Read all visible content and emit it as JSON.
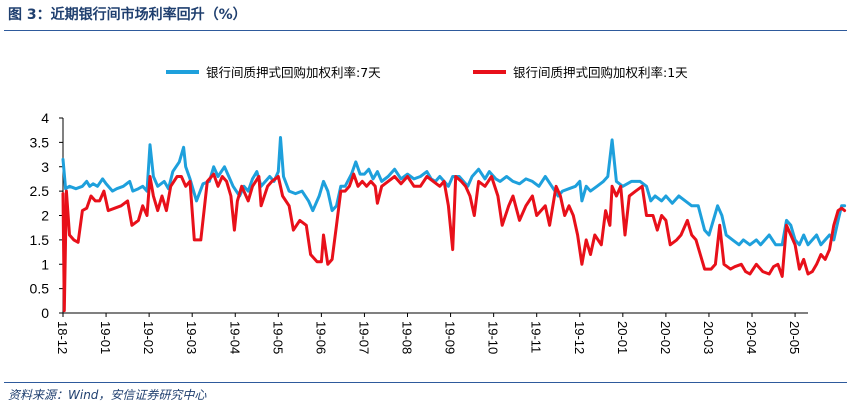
{
  "figure": {
    "title": "图 3：近期银行间市场利率回升（%）",
    "source": "资料来源：Wind，安信证券研究中心"
  },
  "colors": {
    "dr007": "#1ea0dc",
    "dr001": "#e8101a",
    "rule": "#2e5a9c"
  },
  "chart_data": {
    "type": "line",
    "title": "",
    "xlabel": "",
    "ylabel": "",
    "ylim": [
      0,
      4
    ],
    "yticks": [
      "0",
      "0.5",
      "1",
      "1.5",
      "2",
      "2.5",
      "3",
      "3.5",
      "4"
    ],
    "xticks": [
      "18-12",
      "19-01",
      "19-02",
      "19-03",
      "19-04",
      "19-05",
      "19-06",
      "19-07",
      "19-08",
      "19-09",
      "19-10",
      "19-11",
      "19-12",
      "20-01",
      "20-02",
      "20-03",
      "20-04",
      "20-05"
    ],
    "grid": false,
    "legend": "top",
    "series": [
      {
        "name": "银行间质押式回购加权利率:7天",
        "color": "#1ea0dc",
        "points": [
          [
            0.0,
            3.15
          ],
          [
            0.06,
            2.55
          ],
          [
            0.15,
            2.6
          ],
          [
            0.3,
            2.55
          ],
          [
            0.45,
            2.6
          ],
          [
            0.55,
            2.7
          ],
          [
            0.62,
            2.6
          ],
          [
            0.7,
            2.65
          ],
          [
            0.8,
            2.6
          ],
          [
            0.92,
            2.75
          ],
          [
            1.0,
            2.65
          ],
          [
            1.15,
            2.5
          ],
          [
            1.25,
            2.55
          ],
          [
            1.4,
            2.6
          ],
          [
            1.55,
            2.7
          ],
          [
            1.62,
            2.5
          ],
          [
            1.75,
            2.55
          ],
          [
            1.85,
            2.6
          ],
          [
            1.95,
            2.5
          ],
          [
            2.02,
            3.45
          ],
          [
            2.1,
            2.8
          ],
          [
            2.2,
            2.6
          ],
          [
            2.35,
            2.7
          ],
          [
            2.45,
            2.55
          ],
          [
            2.55,
            2.9
          ],
          [
            2.7,
            3.1
          ],
          [
            2.8,
            3.4
          ],
          [
            2.85,
            3.0
          ],
          [
            2.95,
            2.75
          ],
          [
            3.1,
            2.3
          ],
          [
            3.25,
            2.65
          ],
          [
            3.4,
            2.7
          ],
          [
            3.5,
            3.0
          ],
          [
            3.6,
            2.8
          ],
          [
            3.75,
            3.0
          ],
          [
            3.85,
            2.8
          ],
          [
            3.95,
            2.6
          ],
          [
            4.1,
            2.4
          ],
          [
            4.2,
            2.6
          ],
          [
            4.3,
            2.5
          ],
          [
            4.4,
            2.75
          ],
          [
            4.5,
            2.9
          ],
          [
            4.6,
            2.6
          ],
          [
            4.7,
            2.7
          ],
          [
            4.8,
            2.8
          ],
          [
            4.9,
            2.7
          ],
          [
            5.0,
            2.9
          ],
          [
            5.05,
            3.6
          ],
          [
            5.12,
            2.8
          ],
          [
            5.25,
            2.5
          ],
          [
            5.4,
            2.45
          ],
          [
            5.55,
            2.5
          ],
          [
            5.7,
            2.3
          ],
          [
            5.8,
            2.1
          ],
          [
            5.95,
            2.4
          ],
          [
            6.05,
            2.7
          ],
          [
            6.15,
            2.5
          ],
          [
            6.25,
            2.1
          ],
          [
            6.35,
            2.2
          ],
          [
            6.45,
            2.6
          ],
          [
            6.55,
            2.6
          ],
          [
            6.7,
            2.85
          ],
          [
            6.8,
            3.1
          ],
          [
            6.9,
            2.85
          ],
          [
            7.0,
            2.85
          ],
          [
            7.1,
            2.95
          ],
          [
            7.2,
            2.75
          ],
          [
            7.3,
            2.9
          ],
          [
            7.4,
            2.7
          ],
          [
            7.55,
            2.8
          ],
          [
            7.7,
            2.95
          ],
          [
            7.85,
            2.75
          ],
          [
            8.0,
            2.85
          ],
          [
            8.15,
            2.75
          ],
          [
            8.3,
            2.8
          ],
          [
            8.45,
            2.9
          ],
          [
            8.55,
            2.75
          ],
          [
            8.65,
            2.7
          ],
          [
            8.75,
            2.8
          ],
          [
            8.85,
            2.7
          ],
          [
            8.95,
            2.6
          ],
          [
            9.05,
            2.8
          ],
          [
            9.2,
            2.8
          ],
          [
            9.3,
            2.7
          ],
          [
            9.4,
            2.6
          ],
          [
            9.5,
            2.8
          ],
          [
            9.65,
            2.95
          ],
          [
            9.8,
            2.75
          ],
          [
            9.9,
            2.9
          ],
          [
            10.05,
            2.75
          ],
          [
            10.15,
            2.7
          ],
          [
            10.3,
            2.8
          ],
          [
            10.45,
            2.7
          ],
          [
            10.6,
            2.65
          ],
          [
            10.75,
            2.75
          ],
          [
            10.9,
            2.7
          ],
          [
            11.05,
            2.6
          ],
          [
            11.2,
            2.8
          ],
          [
            11.35,
            2.6
          ],
          [
            11.5,
            2.4
          ],
          [
            11.6,
            2.5
          ],
          [
            11.75,
            2.55
          ],
          [
            11.9,
            2.6
          ],
          [
            12.0,
            2.7
          ],
          [
            12.05,
            2.3
          ],
          [
            12.15,
            2.6
          ],
          [
            12.25,
            2.5
          ],
          [
            12.4,
            2.6
          ],
          [
            12.55,
            2.7
          ],
          [
            12.65,
            2.8
          ],
          [
            12.75,
            3.55
          ],
          [
            12.85,
            2.7
          ],
          [
            13.0,
            2.6
          ],
          [
            13.2,
            2.7
          ],
          [
            13.4,
            2.7
          ],
          [
            13.55,
            2.6
          ],
          [
            13.65,
            2.3
          ],
          [
            13.75,
            2.4
          ],
          [
            13.9,
            2.3
          ],
          [
            14.0,
            2.4
          ],
          [
            14.15,
            2.25
          ],
          [
            14.3,
            2.4
          ],
          [
            14.45,
            2.3
          ],
          [
            14.6,
            2.2
          ],
          [
            14.75,
            2.2
          ],
          [
            14.9,
            1.7
          ],
          [
            15.0,
            1.6
          ],
          [
            15.1,
            1.9
          ],
          [
            15.2,
            2.2
          ],
          [
            15.3,
            2.0
          ],
          [
            15.4,
            1.6
          ],
          [
            15.55,
            1.5
          ],
          [
            15.7,
            1.4
          ],
          [
            15.8,
            1.5
          ],
          [
            15.95,
            1.4
          ],
          [
            16.1,
            1.5
          ],
          [
            16.2,
            1.4
          ],
          [
            16.3,
            1.5
          ],
          [
            16.4,
            1.6
          ],
          [
            16.55,
            1.4
          ],
          [
            16.7,
            1.4
          ],
          [
            16.8,
            1.9
          ],
          [
            16.9,
            1.8
          ],
          [
            17.0,
            1.5
          ],
          [
            17.1,
            1.4
          ],
          [
            17.2,
            1.6
          ],
          [
            17.3,
            1.4
          ],
          [
            17.4,
            1.5
          ],
          [
            17.5,
            1.6
          ],
          [
            17.6,
            1.4
          ],
          [
            17.7,
            1.5
          ],
          [
            17.8,
            1.6
          ],
          [
            17.9,
            1.5
          ],
          [
            18.0,
            1.9
          ],
          [
            18.08,
            2.2
          ],
          [
            18.15,
            2.2
          ]
        ]
      },
      {
        "name": "银行间质押式回购加权利率:1天",
        "color": "#e8101a",
        "points": [
          [
            0.0,
            2.45
          ],
          [
            0.03,
            0.05
          ],
          [
            0.08,
            2.5
          ],
          [
            0.15,
            1.6
          ],
          [
            0.25,
            1.5
          ],
          [
            0.35,
            1.45
          ],
          [
            0.45,
            2.1
          ],
          [
            0.55,
            2.15
          ],
          [
            0.65,
            2.4
          ],
          [
            0.75,
            2.3
          ],
          [
            0.85,
            2.3
          ],
          [
            0.95,
            2.5
          ],
          [
            1.05,
            2.1
          ],
          [
            1.2,
            2.15
          ],
          [
            1.35,
            2.2
          ],
          [
            1.5,
            2.3
          ],
          [
            1.6,
            1.8
          ],
          [
            1.75,
            1.9
          ],
          [
            1.85,
            2.2
          ],
          [
            1.95,
            2.0
          ],
          [
            2.02,
            2.8
          ],
          [
            2.1,
            2.4
          ],
          [
            2.2,
            2.1
          ],
          [
            2.3,
            2.4
          ],
          [
            2.4,
            2.1
          ],
          [
            2.5,
            2.6
          ],
          [
            2.65,
            2.8
          ],
          [
            2.75,
            2.8
          ],
          [
            2.85,
            2.6
          ],
          [
            2.95,
            2.7
          ],
          [
            3.05,
            1.5
          ],
          [
            3.2,
            1.5
          ],
          [
            3.35,
            2.7
          ],
          [
            3.5,
            2.85
          ],
          [
            3.6,
            2.6
          ],
          [
            3.7,
            2.8
          ],
          [
            3.8,
            2.7
          ],
          [
            3.9,
            2.4
          ],
          [
            3.98,
            1.7
          ],
          [
            4.05,
            2.3
          ],
          [
            4.15,
            2.6
          ],
          [
            4.3,
            2.3
          ],
          [
            4.4,
            2.6
          ],
          [
            4.55,
            2.8
          ],
          [
            4.6,
            2.2
          ],
          [
            4.75,
            2.6
          ],
          [
            4.85,
            2.7
          ],
          [
            5.0,
            2.8
          ],
          [
            5.1,
            2.4
          ],
          [
            5.25,
            2.2
          ],
          [
            5.35,
            1.7
          ],
          [
            5.5,
            1.9
          ],
          [
            5.65,
            1.8
          ],
          [
            5.75,
            1.2
          ],
          [
            5.9,
            1.05
          ],
          [
            6.0,
            1.05
          ],
          [
            6.05,
            1.6
          ],
          [
            6.15,
            1.0
          ],
          [
            6.25,
            1.1
          ],
          [
            6.35,
            1.8
          ],
          [
            6.45,
            2.5
          ],
          [
            6.55,
            2.5
          ],
          [
            6.65,
            2.6
          ],
          [
            6.75,
            2.85
          ],
          [
            6.85,
            2.6
          ],
          [
            6.95,
            2.7
          ],
          [
            7.05,
            2.6
          ],
          [
            7.15,
            2.7
          ],
          [
            7.25,
            2.6
          ],
          [
            7.3,
            2.25
          ],
          [
            7.4,
            2.6
          ],
          [
            7.55,
            2.7
          ],
          [
            7.7,
            2.8
          ],
          [
            7.85,
            2.65
          ],
          [
            8.0,
            2.8
          ],
          [
            8.15,
            2.6
          ],
          [
            8.3,
            2.6
          ],
          [
            8.45,
            2.8
          ],
          [
            8.6,
            2.7
          ],
          [
            8.75,
            2.6
          ],
          [
            8.85,
            2.7
          ],
          [
            8.95,
            2.2
          ],
          [
            9.05,
            1.3
          ],
          [
            9.12,
            2.8
          ],
          [
            9.25,
            2.7
          ],
          [
            9.35,
            2.6
          ],
          [
            9.45,
            2.4
          ],
          [
            9.55,
            2.0
          ],
          [
            9.65,
            2.7
          ],
          [
            9.8,
            2.6
          ],
          [
            9.95,
            2.8
          ],
          [
            10.1,
            2.4
          ],
          [
            10.2,
            1.8
          ],
          [
            10.35,
            2.2
          ],
          [
            10.45,
            2.4
          ],
          [
            10.6,
            1.9
          ],
          [
            10.75,
            2.2
          ],
          [
            10.9,
            2.4
          ],
          [
            11.0,
            2.0
          ],
          [
            11.1,
            2.1
          ],
          [
            11.2,
            2.2
          ],
          [
            11.3,
            1.8
          ],
          [
            11.45,
            2.6
          ],
          [
            11.55,
            2.4
          ],
          [
            11.65,
            2.0
          ],
          [
            11.75,
            2.2
          ],
          [
            11.85,
            2.0
          ],
          [
            11.95,
            1.6
          ],
          [
            12.05,
            1.0
          ],
          [
            12.15,
            1.5
          ],
          [
            12.25,
            1.2
          ],
          [
            12.35,
            1.6
          ],
          [
            12.5,
            1.4
          ],
          [
            12.6,
            2.1
          ],
          [
            12.7,
            1.8
          ],
          [
            12.75,
            2.6
          ],
          [
            12.85,
            2.4
          ],
          [
            12.95,
            2.6
          ],
          [
            13.05,
            1.6
          ],
          [
            13.15,
            2.4
          ],
          [
            13.3,
            2.5
          ],
          [
            13.45,
            2.6
          ],
          [
            13.55,
            2.0
          ],
          [
            13.7,
            2.0
          ],
          [
            13.8,
            1.7
          ],
          [
            13.9,
            2.0
          ],
          [
            14.0,
            1.9
          ],
          [
            14.1,
            1.4
          ],
          [
            14.25,
            1.5
          ],
          [
            14.35,
            1.6
          ],
          [
            14.5,
            1.9
          ],
          [
            14.6,
            1.6
          ],
          [
            14.7,
            1.5
          ],
          [
            14.8,
            1.2
          ],
          [
            14.9,
            0.9
          ],
          [
            15.05,
            0.9
          ],
          [
            15.15,
            1.0
          ],
          [
            15.25,
            1.8
          ],
          [
            15.35,
            1.0
          ],
          [
            15.5,
            0.9
          ],
          [
            15.6,
            0.95
          ],
          [
            15.75,
            1.0
          ],
          [
            15.85,
            0.85
          ],
          [
            15.95,
            0.8
          ],
          [
            16.1,
            1.0
          ],
          [
            16.25,
            0.85
          ],
          [
            16.4,
            0.8
          ],
          [
            16.5,
            0.95
          ],
          [
            16.6,
            1.0
          ],
          [
            16.7,
            0.75
          ],
          [
            16.8,
            1.8
          ],
          [
            16.9,
            1.6
          ],
          [
            17.0,
            1.4
          ],
          [
            17.1,
            0.9
          ],
          [
            17.2,
            1.1
          ],
          [
            17.3,
            0.8
          ],
          [
            17.4,
            0.85
          ],
          [
            17.5,
            1.0
          ],
          [
            17.6,
            1.2
          ],
          [
            17.7,
            1.1
          ],
          [
            17.8,
            1.3
          ],
          [
            17.9,
            1.8
          ],
          [
            18.0,
            2.1
          ],
          [
            18.08,
            2.15
          ],
          [
            18.15,
            2.1
          ]
        ]
      }
    ]
  }
}
